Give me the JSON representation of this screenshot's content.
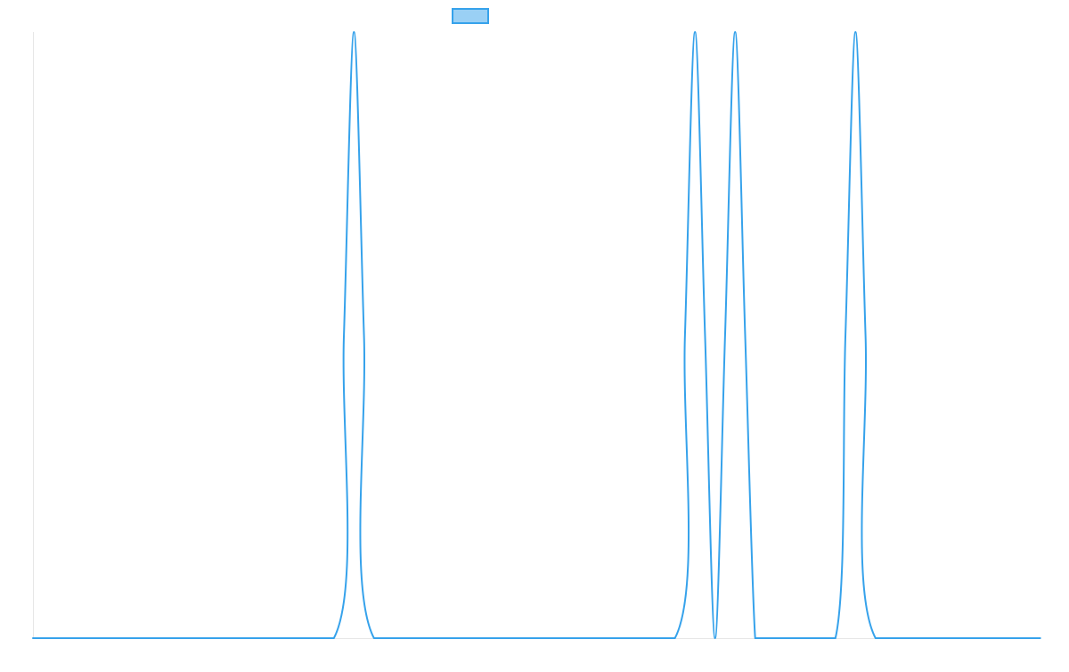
{
  "chart_data": {
    "type": "line",
    "title": "",
    "xlabel": "",
    "ylabel": "",
    "x": [
      0,
      15,
      30,
      31,
      32,
      33,
      34,
      49,
      64,
      65,
      66,
      67,
      68,
      69,
      70,
      71,
      72,
      73,
      74,
      80,
      81,
      82,
      83,
      84,
      99,
      100
    ],
    "xlim": [
      0,
      100
    ],
    "ylim": [
      0,
      1
    ],
    "grid": false,
    "legend": {
      "position": "top",
      "entries": [
        {
          "name": "",
          "color": "#36a2eb",
          "fill": "#9ad0f5"
        }
      ]
    },
    "series": [
      {
        "name": "",
        "color": "#36a2eb",
        "values": [
          0,
          0,
          0,
          0.5,
          1,
          0.5,
          0,
          0,
          0,
          0.5,
          1,
          0.5,
          0,
          0.5,
          1,
          0.5,
          0,
          0,
          0,
          0,
          0.5,
          1,
          0.5,
          0,
          0,
          0
        ]
      }
    ]
  }
}
